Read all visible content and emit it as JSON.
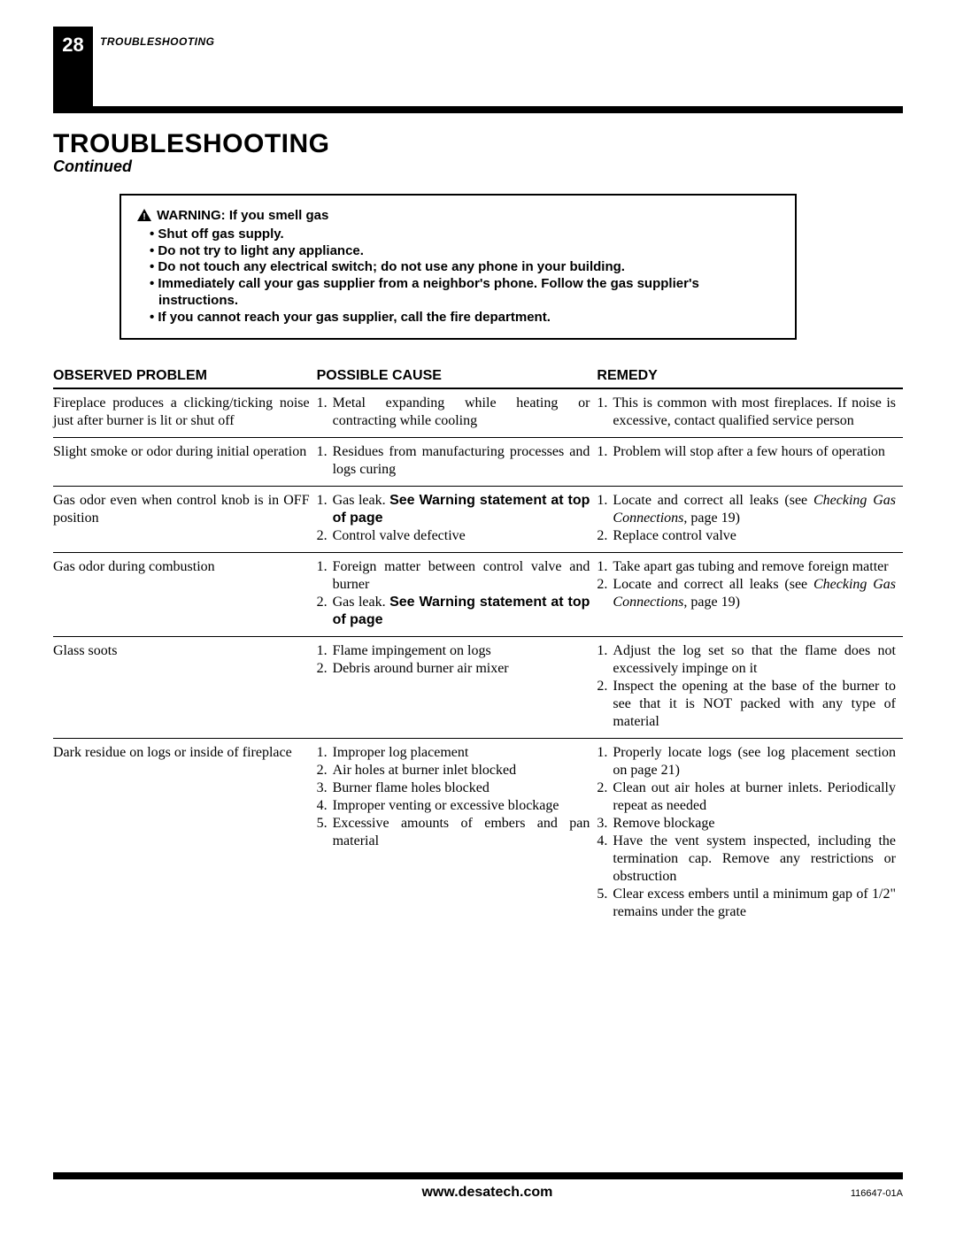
{
  "header": {
    "page_number": "28",
    "section_label": "TROUBLESHOOTING"
  },
  "title": "TROUBLESHOOTING",
  "subtitle": "Continued",
  "warning": {
    "title": "WARNING: If you smell gas",
    "items": [
      "Shut off gas supply.",
      "Do not try to light any appliance.",
      "Do not touch any electrical switch; do not use any phone in your building.",
      "Immediately call your gas supplier from a neighbor's phone. Follow the gas supplier's instructions.",
      "If you cannot reach your gas supplier, call the fire department."
    ]
  },
  "table": {
    "headers": {
      "problem": "OBSERVED PROBLEM",
      "cause": "POSSIBLE CAUSE",
      "remedy": "REMEDY"
    },
    "rows": [
      {
        "problem": "Fireplace produces a clicking/ticking noise just after burner is lit or shut off",
        "causes": [
          {
            "n": "1.",
            "text": "Metal expanding while heating or contracting while cooling"
          }
        ],
        "remedies": [
          {
            "n": "1.",
            "text": "This is common with most fireplaces. If noise is excessive, contact qualified service person"
          }
        ]
      },
      {
        "problem": "Slight smoke or odor during initial operation",
        "causes": [
          {
            "n": "1.",
            "text": "Residues from manufacturing processes and logs curing"
          }
        ],
        "remedies": [
          {
            "n": "1.",
            "text": "Problem will stop after a few hours of operation"
          }
        ]
      },
      {
        "problem": "Gas odor even when control knob is in OFF position",
        "causes": [
          {
            "n": "1.",
            "pre": "Gas leak. ",
            "bold": "See Warning statement at top of page"
          },
          {
            "n": "2.",
            "text": "Control valve defective"
          }
        ],
        "remedies": [
          {
            "n": "1.",
            "pre": "Locate and correct all leaks (see ",
            "ital": "Checking Gas Connections",
            "post": ", page 19)"
          },
          {
            "n": "2.",
            "text": "Replace control valve"
          }
        ]
      },
      {
        "problem": "Gas odor during combustion",
        "causes": [
          {
            "n": "1.",
            "text": "Foreign matter between control valve and burner"
          },
          {
            "n": "2.",
            "pre": "Gas leak. ",
            "bold": "See Warning statement at top of page"
          }
        ],
        "remedies": [
          {
            "n": "1.",
            "text": "Take apart gas tubing and remove foreign matter"
          },
          {
            "n": "2.",
            "pre": "Locate and correct all leaks (see ",
            "ital": "Checking Gas Connections",
            "post": ", page 19)"
          }
        ]
      },
      {
        "problem": "Glass soots",
        "causes": [
          {
            "n": "1.",
            "text": "Flame impingement on logs"
          },
          {
            "n": "2.",
            "text": "Debris around burner air mixer"
          }
        ],
        "remedies": [
          {
            "n": "1.",
            "text": "Adjust the log set so that the flame does not excessively impinge on it"
          },
          {
            "n": "2.",
            "text": "Inspect the opening at the base of the burner to see that it is NOT packed with any type of material"
          }
        ]
      },
      {
        "problem": "Dark residue on logs or inside of fireplace",
        "causes": [
          {
            "n": "1.",
            "text": "Improper log placement"
          },
          {
            "n": "2.",
            "text": "Air holes at burner inlet blocked"
          },
          {
            "n": "3.",
            "text": "Burner flame holes blocked"
          },
          {
            "n": "4.",
            "text": "Improper venting or excessive blockage"
          },
          {
            "n": "5.",
            "text": "Excessive amounts of embers and pan material"
          }
        ],
        "remedies": [
          {
            "n": "1.",
            "text": "Properly locate logs (see log placement section on page 21)"
          },
          {
            "n": "2.",
            "text": "Clean out air holes at burner inlets. Periodically repeat as needed"
          },
          {
            "n": "3.",
            "text": "Remove blockage"
          },
          {
            "n": "4.",
            "text": "Have the vent system inspected, including the termination cap. Remove any restrictions or obstruction"
          },
          {
            "n": "5.",
            "text": "Clear excess embers until a minimum gap of 1/2\" remains under the grate"
          }
        ]
      }
    ]
  },
  "footer": {
    "url": "www.desatech.com",
    "doc_id": "116647-01A"
  }
}
